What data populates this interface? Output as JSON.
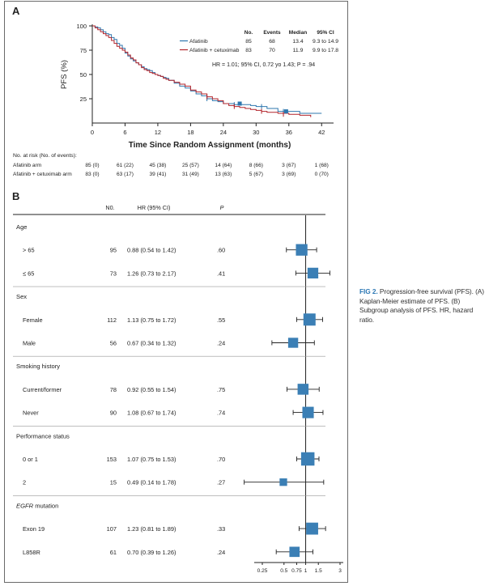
{
  "colors": {
    "afatinib": "#2e77ae",
    "combo": "#b2242b",
    "box": "#3b7fb5",
    "axis": "#222222"
  },
  "caption": {
    "label": "FIG 2.",
    "text": "Progression-free survival (PFS). (A) Kaplan-Meier estimate of PFS. (B) Subgroup analysis of PFS. HR, hazard ratio."
  },
  "panel_a": {
    "letter": "A",
    "legend_headers": [
      "No.",
      "Events",
      "Median",
      "95% CI"
    ],
    "legend_rows": [
      {
        "name": "Afatinib",
        "no": "85",
        "events": "68",
        "median": "13.4",
        "ci": "9.3 to 14.9",
        "color": "#2e77ae"
      },
      {
        "name": "Afatinib + cetuximab",
        "no": "83",
        "events": "70",
        "median": "11.9",
        "ci": "9.9 to 17.8",
        "color": "#b2242b"
      }
    ],
    "hr_text": "HR = 1.01; 95% CI, 0.72 yo 1.43; P = .94",
    "risk_title": "No. at risk (No. of events):",
    "risk_rows": [
      {
        "label": "Afatinib arm",
        "values": [
          "85 (0)",
          "61 (22)",
          "45 (38)",
          "25 (57)",
          "14 (64)",
          "8 (66)",
          "3 (67)",
          "1 (68)"
        ]
      },
      {
        "label": "Afatinib + cetuximab arm",
        "values": [
          "83 (0)",
          "63 (17)",
          "39 (41)",
          "31 (49)",
          "13 (63)",
          "5 (67)",
          "3 (69)",
          "0 (70)"
        ]
      }
    ]
  },
  "chart_data": [
    {
      "type": "line",
      "xlabel": "Time Since Random Assignment (months)",
      "ylabel": "PFS (%)",
      "xlim": [
        0,
        43
      ],
      "ylim": [
        0,
        100
      ],
      "xticks": [
        0,
        6,
        12,
        18,
        24,
        30,
        36,
        42
      ],
      "yticks": [
        25,
        50,
        75,
        100
      ],
      "series": [
        {
          "name": "Afatinib",
          "color": "#2e77ae",
          "x": [
            0,
            0.5,
            1,
            1.5,
            2,
            2.5,
            3,
            3.5,
            4,
            4.5,
            5,
            5.5,
            6,
            6.5,
            7,
            7.5,
            8,
            8.5,
            9,
            9.5,
            10,
            10.5,
            11,
            11.5,
            12,
            12.5,
            13,
            13.5,
            14,
            15,
            16,
            17,
            18,
            19,
            20,
            21,
            22,
            23,
            24,
            25,
            26,
            27,
            28,
            29,
            30,
            31,
            32,
            34,
            36,
            38,
            40,
            42
          ],
          "y": [
            100,
            99,
            98,
            96,
            94,
            92,
            91,
            88,
            86,
            82,
            80,
            77,
            72,
            69,
            66,
            64,
            62,
            60,
            58,
            56,
            55,
            54,
            52,
            50,
            49,
            48,
            47,
            46,
            44,
            41,
            38,
            36,
            33,
            30,
            28,
            25,
            23,
            22,
            20,
            20,
            19,
            19,
            19,
            18,
            17,
            17,
            15,
            12,
            12,
            10,
            10,
            10
          ]
        },
        {
          "name": "Afatinib + cetuximab",
          "color": "#b2242b",
          "x": [
            0,
            0.5,
            1,
            1.5,
            2,
            2.5,
            3,
            3.5,
            4,
            4.5,
            5,
            5.5,
            6,
            6.5,
            7,
            7.5,
            8,
            8.5,
            9,
            9.5,
            10,
            10.5,
            11,
            11.5,
            12,
            12.5,
            13,
            13.5,
            14,
            15,
            16,
            17,
            18,
            19,
            20,
            21,
            22,
            23,
            24,
            25,
            26,
            27,
            28,
            29,
            30,
            31,
            32,
            34,
            36,
            38,
            40
          ],
          "y": [
            100,
            98,
            96,
            94,
            92,
            90,
            88,
            85,
            82,
            79,
            77,
            75,
            73,
            70,
            67,
            65,
            62,
            60,
            57,
            55,
            54,
            52,
            51,
            50,
            49,
            48,
            46,
            45,
            44,
            42,
            40,
            38,
            34,
            32,
            30,
            27,
            25,
            23,
            20,
            18,
            17,
            16,
            15,
            14,
            13,
            12,
            11,
            10,
            9,
            8,
            6
          ]
        }
      ]
    },
    {
      "type": "forest",
      "columns": [
        "N0.",
        "HR (95% CI)",
        "P"
      ],
      "xscale": "log",
      "xticks": [
        "0.25",
        "0.5",
        "0.75",
        "1",
        "1.5",
        "3"
      ],
      "reference": 1,
      "rows": [
        {
          "kind": "header",
          "label": "Age"
        },
        {
          "kind": "data",
          "label": "> 65",
          "n": "95",
          "hr_text": "0.88 (0.54 to 1.42)",
          "p": ".60",
          "hr": 0.88,
          "lo": 0.54,
          "hi": 1.42
        },
        {
          "kind": "data",
          "label": "≤ 65",
          "n": "73",
          "hr_text": "1.26 (0.73 to 2.17)",
          "p": ".41",
          "hr": 1.26,
          "lo": 0.73,
          "hi": 2.17
        },
        {
          "kind": "header",
          "label": "Sex"
        },
        {
          "kind": "data",
          "label": "Female",
          "n": "112",
          "hr_text": "1.13 (0.75 to 1.72)",
          "p": ".55",
          "hr": 1.13,
          "lo": 0.75,
          "hi": 1.72
        },
        {
          "kind": "data",
          "label": "Male",
          "n": "56",
          "hr_text": "0.67 (0.34 to 1.32)",
          "p": ".24",
          "hr": 0.67,
          "lo": 0.34,
          "hi": 1.32
        },
        {
          "kind": "header",
          "label": "Smoking history"
        },
        {
          "kind": "data",
          "label": "Current/former",
          "n": "78",
          "hr_text": "0.92 (0.55 to 1.54)",
          "p": ".75",
          "hr": 0.92,
          "lo": 0.55,
          "hi": 1.54
        },
        {
          "kind": "data",
          "label": "Never",
          "n": "90",
          "hr_text": "1.08 (0.67 to 1.74)",
          "p": ".74",
          "hr": 1.08,
          "lo": 0.67,
          "hi": 1.74
        },
        {
          "kind": "header",
          "label": "Performance status"
        },
        {
          "kind": "data",
          "label": "0 or 1",
          "n": "153",
          "hr_text": "1.07 (0.75 to 1.53)",
          "p": ".70",
          "hr": 1.07,
          "lo": 0.75,
          "hi": 1.53
        },
        {
          "kind": "data",
          "label": "2",
          "n": "15",
          "hr_text": "0.49 (0.14 to 1.78)",
          "p": ".27",
          "hr": 0.49,
          "lo": 0.14,
          "hi": 1.78
        },
        {
          "kind": "header",
          "label": "EGFR mutation",
          "italic_prefix": "EGFR"
        },
        {
          "kind": "data",
          "label": "Exon 19",
          "n": "107",
          "hr_text": "1.23 (0.81 to 1.89)",
          "p": ".33",
          "hr": 1.23,
          "lo": 0.81,
          "hi": 1.89
        },
        {
          "kind": "data",
          "label": "L858R",
          "n": "61",
          "hr_text": "0.70 (0.39 to 1.26)",
          "p": ".24",
          "hr": 0.7,
          "lo": 0.39,
          "hi": 1.26
        }
      ]
    }
  ]
}
